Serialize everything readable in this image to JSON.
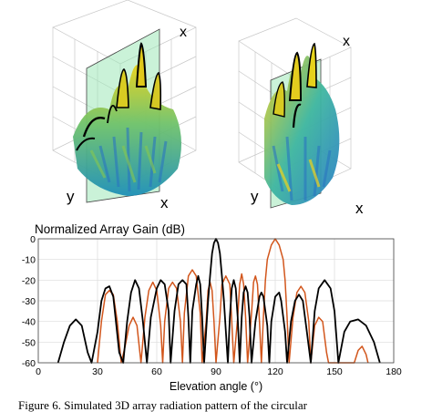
{
  "panels": {
    "left": {
      "y_axis_label": "y",
      "x_axis_label": "x",
      "x_axis_label_top": "x"
    },
    "right": {
      "y_axis_label": "y",
      "x_axis_label": "x",
      "x_axis_label_top": "x"
    }
  },
  "caption": "Figure 6. Simulated 3D array radiation pattern of the circular",
  "colors": {
    "gain_black": "#000000",
    "gain_orange": "#d2561c",
    "cut_plane": "#9fe8b8"
  },
  "chart_data": {
    "type": "line",
    "title": "Normalized Array Gain (dB)",
    "xlabel": "Elevation angle (°)",
    "ylabel": "",
    "xlim": [
      0,
      180
    ],
    "ylim": [
      -60,
      0
    ],
    "x_ticks": [
      0,
      30,
      60,
      90,
      120,
      150,
      180
    ],
    "y_ticks": [
      0,
      -10,
      -20,
      -30,
      -40,
      -50,
      -60
    ],
    "x_tick_labels": [
      "0",
      "30",
      "60",
      "90",
      "120",
      "150",
      "180"
    ],
    "y_tick_labels": [
      "0",
      "-10",
      "-20",
      "-30",
      "-40",
      "-50",
      "-60"
    ],
    "grid": true,
    "legend": "none",
    "series": [
      {
        "color": "#000000",
        "points": [
          [
            10,
            -60
          ],
          [
            13,
            -50
          ],
          [
            16,
            -42
          ],
          [
            19,
            -39
          ],
          [
            22,
            -42
          ],
          [
            25,
            -55
          ],
          [
            27,
            -60
          ],
          [
            30,
            -45
          ],
          [
            32,
            -30
          ],
          [
            34,
            -24
          ],
          [
            36,
            -23
          ],
          [
            38,
            -28
          ],
          [
            41,
            -55
          ],
          [
            43,
            -60
          ],
          [
            45,
            -40
          ],
          [
            47,
            -26
          ],
          [
            49,
            -20
          ],
          [
            51,
            -24
          ],
          [
            53,
            -40
          ],
          [
            55,
            -60
          ],
          [
            57,
            -38
          ],
          [
            60,
            -24
          ],
          [
            62,
            -20
          ],
          [
            64,
            -22
          ],
          [
            66,
            -35
          ],
          [
            67,
            -60
          ],
          [
            69,
            -35
          ],
          [
            71,
            -22
          ],
          [
            73,
            -20
          ],
          [
            75,
            -22
          ],
          [
            76,
            -38
          ],
          [
            77,
            -60
          ],
          [
            78,
            -35
          ],
          [
            80,
            -22
          ],
          [
            81,
            -18
          ],
          [
            82,
            -22
          ],
          [
            83,
            -38
          ],
          [
            84,
            -60
          ],
          [
            86,
            -30
          ],
          [
            87,
            -18
          ],
          [
            88,
            -7
          ],
          [
            89,
            -2
          ],
          [
            90,
            0
          ],
          [
            91,
            -2
          ],
          [
            92,
            -7
          ],
          [
            93,
            -18
          ],
          [
            94,
            -30
          ],
          [
            96,
            -60
          ],
          [
            97,
            -38
          ],
          [
            98,
            -24
          ],
          [
            99,
            -20
          ],
          [
            100,
            -24
          ],
          [
            101,
            -38
          ],
          [
            102,
            -60
          ],
          [
            103,
            -38
          ],
          [
            104,
            -26
          ],
          [
            105,
            -23
          ],
          [
            106,
            -26
          ],
          [
            107,
            -38
          ],
          [
            108,
            -60
          ],
          [
            110,
            -40
          ],
          [
            112,
            -28
          ],
          [
            113,
            -26
          ],
          [
            114,
            -28
          ],
          [
            116,
            -42
          ],
          [
            117,
            -60
          ],
          [
            118,
            -40
          ],
          [
            120,
            -28
          ],
          [
            122,
            -26
          ],
          [
            123,
            -30
          ],
          [
            125,
            -45
          ],
          [
            126,
            -60
          ],
          [
            128,
            -40
          ],
          [
            130,
            -30
          ],
          [
            132,
            -27
          ],
          [
            134,
            -30
          ],
          [
            136,
            -45
          ],
          [
            138,
            -60
          ],
          [
            140,
            -35
          ],
          [
            142,
            -24
          ],
          [
            145,
            -20
          ],
          [
            148,
            -24
          ],
          [
            150,
            -35
          ],
          [
            152,
            -60
          ],
          [
            155,
            -45
          ],
          [
            158,
            -40
          ],
          [
            162,
            -39
          ],
          [
            166,
            -42
          ],
          [
            170,
            -50
          ],
          [
            173,
            -60
          ]
        ]
      },
      {
        "color": "#d2561c",
        "points": [
          [
            30,
            -60
          ],
          [
            32,
            -40
          ],
          [
            34,
            -27
          ],
          [
            36,
            -25
          ],
          [
            38,
            -27
          ],
          [
            40,
            -40
          ],
          [
            42,
            -60
          ],
          [
            44,
            -52
          ],
          [
            46,
            -42
          ],
          [
            48,
            -38
          ],
          [
            50,
            -42
          ],
          [
            52,
            -60
          ],
          [
            54,
            -38
          ],
          [
            56,
            -25
          ],
          [
            58,
            -21
          ],
          [
            60,
            -25
          ],
          [
            62,
            -42
          ],
          [
            63,
            -60
          ],
          [
            64,
            -40
          ],
          [
            66,
            -24
          ],
          [
            68,
            -21
          ],
          [
            70,
            -24
          ],
          [
            72,
            -40
          ],
          [
            73,
            -60
          ],
          [
            74,
            -36
          ],
          [
            76,
            -18
          ],
          [
            78,
            -15
          ],
          [
            80,
            -18
          ],
          [
            82,
            -36
          ],
          [
            83,
            -60
          ],
          [
            85,
            -40
          ],
          [
            86,
            -25
          ],
          [
            87,
            -21
          ],
          [
            88,
            -25
          ],
          [
            89,
            -40
          ],
          [
            90,
            -60
          ],
          [
            92,
            -38
          ],
          [
            93,
            -22
          ],
          [
            95,
            -18
          ],
          [
            97,
            -22
          ],
          [
            98,
            -40
          ],
          [
            99,
            -60
          ],
          [
            101,
            -38
          ],
          [
            102,
            -22
          ],
          [
            103,
            -17
          ],
          [
            104,
            -22
          ],
          [
            105,
            -38
          ],
          [
            106,
            -60
          ],
          [
            108,
            -36
          ],
          [
            109,
            -21
          ],
          [
            110,
            -18
          ],
          [
            111,
            -22
          ],
          [
            112,
            -40
          ],
          [
            113,
            -60
          ],
          [
            114,
            -38
          ],
          [
            115,
            -20
          ],
          [
            116,
            -10
          ],
          [
            118,
            -3
          ],
          [
            120,
            0
          ],
          [
            122,
            -3
          ],
          [
            124,
            -10
          ],
          [
            125,
            -20
          ],
          [
            126,
            -38
          ],
          [
            127,
            -60
          ],
          [
            129,
            -38
          ],
          [
            131,
            -26
          ],
          [
            133,
            -23
          ],
          [
            135,
            -26
          ],
          [
            137,
            -40
          ],
          [
            138,
            -60
          ],
          [
            140,
            -42
          ],
          [
            142,
            -38
          ],
          [
            144,
            -40
          ],
          [
            146,
            -55
          ],
          [
            147,
            -60
          ],
          [
            160,
            -60
          ],
          [
            162,
            -54
          ],
          [
            164,
            -52
          ],
          [
            166,
            -56
          ],
          [
            167,
            -60
          ]
        ]
      }
    ]
  }
}
